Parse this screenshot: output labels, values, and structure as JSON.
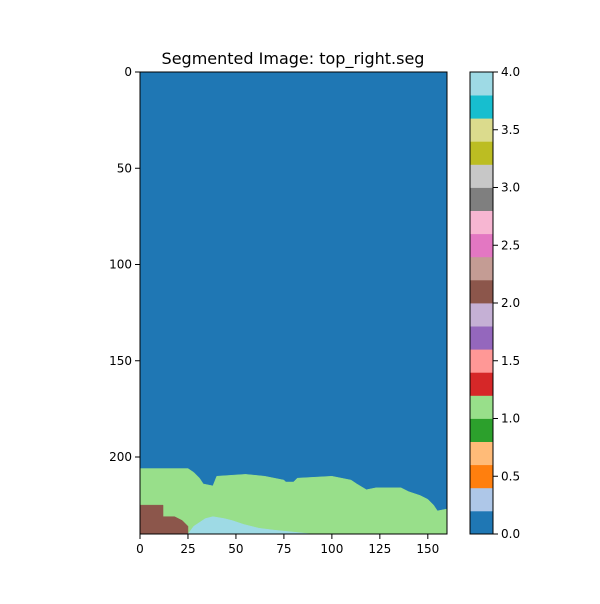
{
  "chart_data": {
    "type": "heatmap",
    "title": "Segmented Image: top_right.seg",
    "xlabel": "",
    "ylabel": "",
    "image_width": 160,
    "image_height": 240,
    "xlim": [
      0,
      160
    ],
    "ylim": [
      240,
      0
    ],
    "x_ticks": [
      0,
      25,
      50,
      75,
      100,
      125,
      150
    ],
    "y_ticks": [
      0,
      50,
      100,
      150,
      200
    ],
    "grid": false,
    "colormap": "tab20",
    "colorbar": {
      "range": [
        0.0,
        4.0
      ],
      "ticks": [
        "0.0",
        "0.5",
        "1.0",
        "1.5",
        "2.0",
        "2.5",
        "3.0",
        "3.5",
        "4.0"
      ],
      "colors": [
        "#1f77b4",
        "#aec7e8",
        "#ff7f0e",
        "#ffbb78",
        "#2ca02c",
        "#98df8a",
        "#d62728",
        "#ff9896",
        "#9467bd",
        "#c5b0d5",
        "#8c564b",
        "#c49c94",
        "#e377c2",
        "#f7b6d2",
        "#7f7f7f",
        "#c7c7c7",
        "#bcbd22",
        "#dbdb8d",
        "#17becf",
        "#9edae5"
      ]
    },
    "segments": [
      {
        "label": 0,
        "color": "#1f77b4",
        "polygon": [
          [
            0,
            0
          ],
          [
            160,
            0
          ],
          [
            160,
            240
          ],
          [
            0,
            240
          ]
        ]
      },
      {
        "label": 1,
        "color": "#98df8a",
        "polygon": [
          [
            0,
            206
          ],
          [
            25,
            206
          ],
          [
            28,
            208
          ],
          [
            31,
            211
          ],
          [
            33,
            214
          ],
          [
            38,
            215
          ],
          [
            40,
            210
          ],
          [
            55,
            209
          ],
          [
            65,
            210
          ],
          [
            75,
            212
          ],
          [
            76,
            213
          ],
          [
            80,
            213
          ],
          [
            82,
            211
          ],
          [
            100,
            210
          ],
          [
            110,
            212
          ],
          [
            113,
            214
          ],
          [
            118,
            217
          ],
          [
            123,
            216
          ],
          [
            136,
            216
          ],
          [
            140,
            218
          ],
          [
            146,
            220
          ],
          [
            150,
            222
          ],
          [
            153,
            225
          ],
          [
            155,
            228
          ],
          [
            160,
            227
          ],
          [
            160,
            240
          ],
          [
            0,
            240
          ]
        ]
      },
      {
        "label": 2,
        "color": "#8c564b",
        "polygon": [
          [
            0,
            225
          ],
          [
            12,
            225
          ],
          [
            12,
            231
          ],
          [
            18,
            231
          ],
          [
            22,
            233
          ],
          [
            25,
            236
          ],
          [
            25,
            240
          ],
          [
            0,
            240
          ]
        ]
      },
      {
        "label": 4,
        "color": "#9edae5",
        "polygon": [
          [
            25,
            240
          ],
          [
            28,
            236
          ],
          [
            31,
            234
          ],
          [
            34,
            232
          ],
          [
            38,
            231
          ],
          [
            44,
            232
          ],
          [
            48,
            233
          ],
          [
            54,
            235
          ],
          [
            62,
            237
          ],
          [
            70,
            238
          ],
          [
            80,
            239
          ],
          [
            90,
            240
          ]
        ]
      }
    ]
  }
}
